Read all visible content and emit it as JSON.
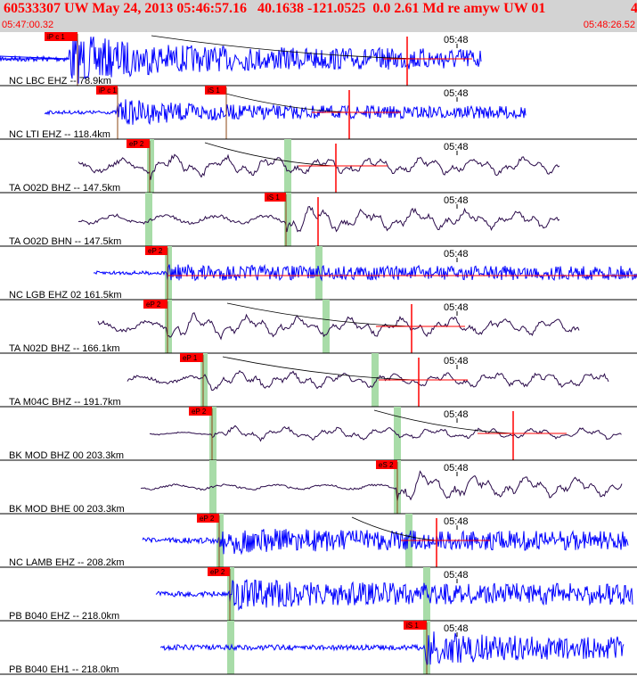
{
  "header": {
    "title": "60533307 UW May 24, 2013 05:46:57.16   40.1638 -121.0525  0.0 2.61 Md re amyw UW 01",
    "title_suffix": "4",
    "start_time": "05:47:00.32",
    "end_time": "05:48:26.52"
  },
  "colors": {
    "header_bg": "#d3d3d3",
    "header_text": "#ff0000",
    "trace_blue": "#0000ff",
    "trace_dark": "#2a0a4a",
    "pick_red": "#ff0000",
    "window_green": "#a8dca8",
    "divider": "#000000"
  },
  "traces": [
    {
      "label": "NC LBC EHZ -- 78.9km",
      "time_tick": "05:48",
      "picks": [
        "iP c 1"
      ],
      "color": "blue"
    },
    {
      "label": "NC LTI EHZ -- 118.4km",
      "time_tick": "05:48",
      "picks": [
        "iP c 1",
        "iS 1"
      ],
      "color": "blue"
    },
    {
      "label": "TA O02D BHZ -- 147.5km",
      "time_tick": "05:48",
      "picks": [
        "eP 2"
      ],
      "color": "dark"
    },
    {
      "label": "TA O02D BHN -- 147.5km",
      "time_tick": "05:48",
      "picks": [
        "iS 1"
      ],
      "color": "dark"
    },
    {
      "label": "NC LGB EHZ 02 161.5km",
      "time_tick": "05:48",
      "picks": [
        "eP 2"
      ],
      "color": "blue"
    },
    {
      "label": "TA N02D BHZ -- 166.1km",
      "time_tick": "05:48",
      "picks": [
        "eP 2"
      ],
      "color": "dark"
    },
    {
      "label": "TA M04C BHZ -- 191.7km",
      "time_tick": "05:48",
      "picks": [
        "eP 1"
      ],
      "color": "dark"
    },
    {
      "label": "BK MOD BHZ 00 203.3km",
      "time_tick": "05:48",
      "picks": [
        "eP 2"
      ],
      "color": "dark"
    },
    {
      "label": "BK MOD BHE 00 203.3km",
      "time_tick": "05:48",
      "picks": [
        "eS 2"
      ],
      "color": "dark"
    },
    {
      "label": "NC LAMB EHZ -- 208.2km",
      "time_tick": "05:48",
      "picks": [
        "eP 2"
      ],
      "color": "blue"
    },
    {
      "label": "PB B040 EHZ -- 218.0km",
      "time_tick": "05:48",
      "picks": [
        "eP 2"
      ],
      "color": "blue"
    },
    {
      "label": "PB B040 EH1 -- 218.0km",
      "time_tick": "05:48",
      "picks": [
        "iS 1"
      ],
      "color": "blue"
    }
  ]
}
